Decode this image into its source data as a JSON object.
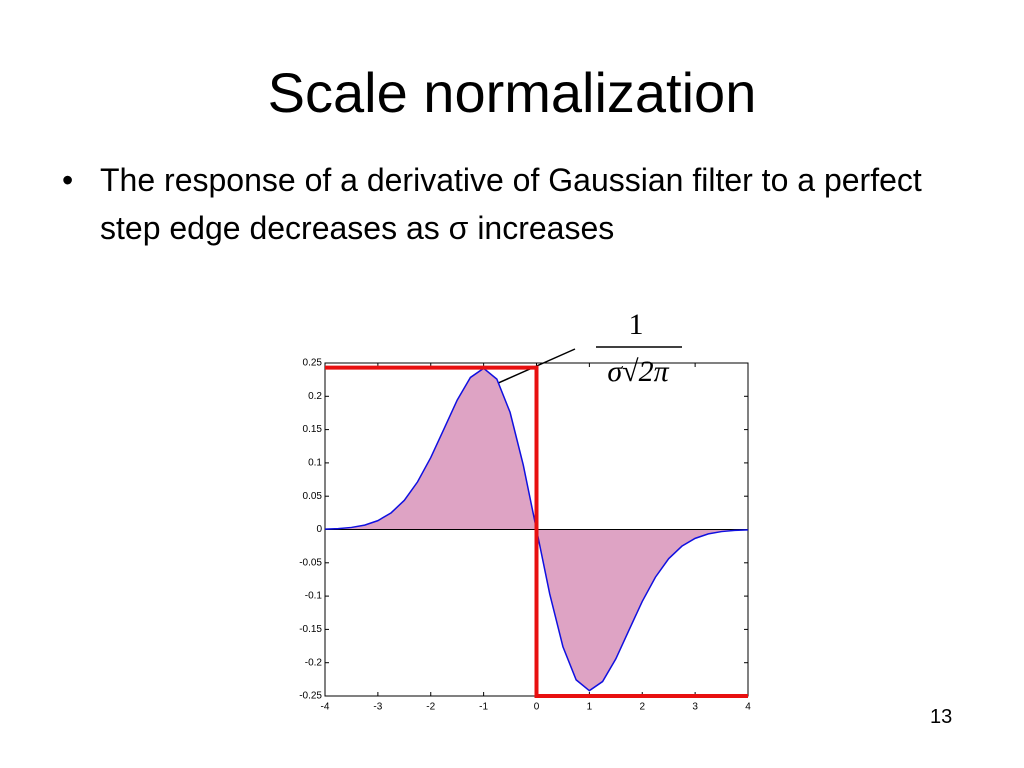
{
  "title": "Scale normalization",
  "bullet": "The response of a derivative of Gaussian filter to a perfect step edge decreases as σ increases",
  "slide_number": "13",
  "chart_data": {
    "type": "line",
    "annotation": {
      "numerator": "1",
      "denominator": "σ√2π"
    },
    "xlim": [
      -4,
      4
    ],
    "xticks": [
      -4,
      -3,
      -2,
      -1,
      0,
      1,
      2,
      3,
      4
    ],
    "ylim": [
      -0.25,
      0.25
    ],
    "yticks": [
      -0.25,
      -0.2,
      -0.15,
      -0.1,
      -0.05,
      0,
      0.05,
      0.1,
      0.15,
      0.2,
      0.25
    ],
    "series": [
      {
        "color": "#1010e0",
        "fill": "#dea3c4",
        "x": [
          -4,
          -3.75,
          -3.5,
          -3.25,
          -3,
          -2.75,
          -2.5,
          -2.25,
          -2,
          -1.75,
          -1.5,
          -1.25,
          -1,
          -0.75,
          -0.5,
          -0.25,
          0,
          0.25,
          0.5,
          0.75,
          1,
          1.25,
          1.5,
          1.75,
          2,
          2.25,
          2.5,
          2.75,
          3,
          3.25,
          3.5,
          3.75,
          4
        ],
        "values": [
          0.0005,
          0.0013,
          0.0031,
          0.0066,
          0.0133,
          0.025,
          0.0438,
          0.0715,
          0.108,
          0.151,
          0.1943,
          0.2283,
          0.242,
          0.2258,
          0.176,
          0.0967,
          0,
          -0.0967,
          -0.176,
          -0.2258,
          -0.242,
          -0.2283,
          -0.1943,
          -0.151,
          -0.108,
          -0.0715,
          -0.0438,
          -0.025,
          -0.0133,
          -0.0066,
          -0.0031,
          -0.0013,
          -0.0005
        ]
      },
      {
        "color": "#e81010",
        "x": [
          -4,
          0,
          0,
          4
        ],
        "values": [
          0.243,
          0.243,
          -0.25,
          -0.25
        ]
      }
    ]
  }
}
